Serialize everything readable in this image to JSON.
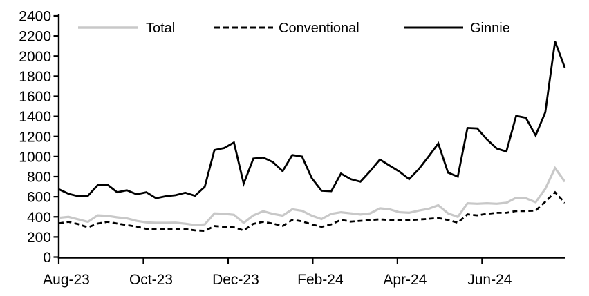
{
  "chart_data": {
    "type": "line",
    "title": "",
    "xlabel": "",
    "ylabel": "",
    "grid": false,
    "legend_position": "top-inside",
    "ylim": [
      0,
      2400
    ],
    "y_ticks": [
      0,
      200,
      400,
      600,
      800,
      1000,
      1200,
      1400,
      1600,
      1800,
      2000,
      2200,
      2400
    ],
    "x_tick_labels": [
      "Aug-23",
      "Oct-23",
      "Dec-23",
      "Feb-24",
      "Apr-24",
      "Jun-24"
    ],
    "x_tick_week_positions": [
      0,
      8.7,
      17.4,
      26.1,
      34.8,
      43.5
    ],
    "x_unit": "weekly",
    "series": [
      {
        "name": "Total",
        "color": "#c8c8c8",
        "style": "solid",
        "values": [
          390,
          400,
          375,
          350,
          415,
          410,
          395,
          385,
          360,
          345,
          340,
          340,
          342,
          332,
          318,
          325,
          435,
          430,
          420,
          340,
          415,
          455,
          430,
          412,
          475,
          460,
          412,
          378,
          430,
          446,
          435,
          423,
          435,
          485,
          475,
          446,
          440,
          462,
          480,
          515,
          435,
          400,
          535,
          530,
          535,
          530,
          540,
          590,
          585,
          545,
          680,
          885,
          750
        ]
      },
      {
        "name": "Conventional",
        "color": "#000000",
        "style": "dashed",
        "values": [
          335,
          350,
          327,
          295,
          333,
          350,
          333,
          318,
          303,
          280,
          278,
          278,
          280,
          278,
          265,
          260,
          308,
          300,
          295,
          265,
          330,
          350,
          333,
          308,
          370,
          355,
          325,
          300,
          325,
          370,
          352,
          360,
          368,
          375,
          368,
          365,
          368,
          373,
          380,
          388,
          368,
          342,
          425,
          415,
          430,
          440,
          440,
          458,
          458,
          462,
          550,
          645,
          540
        ]
      },
      {
        "name": "Ginnie",
        "color": "#000000",
        "style": "solid",
        "values": [
          675,
          630,
          605,
          610,
          715,
          720,
          645,
          665,
          625,
          645,
          585,
          605,
          615,
          640,
          610,
          700,
          1065,
          1085,
          1140,
          730,
          980,
          990,
          945,
          855,
          1015,
          1000,
          785,
          660,
          655,
          830,
          775,
          750,
          855,
          970,
          910,
          850,
          775,
          875,
          1000,
          1130,
          840,
          800,
          1285,
          1280,
          1170,
          1080,
          1050,
          1405,
          1385,
          1210,
          1440,
          2145,
          1885
        ]
      }
    ]
  }
}
